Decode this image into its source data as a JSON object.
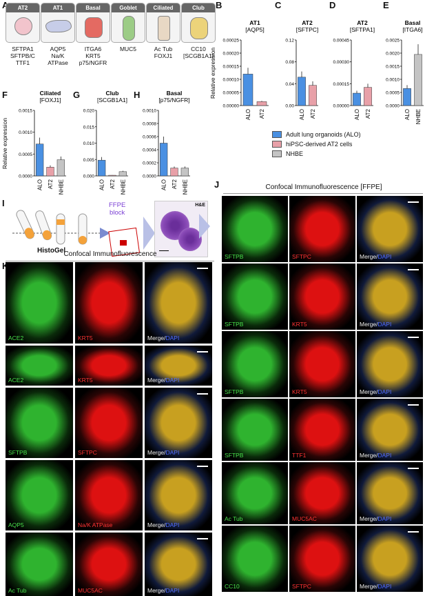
{
  "panels": {
    "A": "A",
    "B": "B",
    "C": "C",
    "D": "D",
    "E": "E",
    "F": "F",
    "G": "G",
    "H": "H",
    "I": "I",
    "J": "J",
    "K": "K"
  },
  "cell_types": [
    {
      "name": "AT2",
      "markers": [
        "SFTPA1",
        "SFTPB/C",
        "TTF1"
      ],
      "color": "#f2c4cc"
    },
    {
      "name": "AT1",
      "markers": [
        "AQP5",
        "Na/K",
        "ATPase"
      ],
      "color": "#c7cde8"
    },
    {
      "name": "Basal",
      "markers": [
        "ITGA6",
        "KRT5",
        "p75/NGFR"
      ],
      "color": "#e46a62"
    },
    {
      "name": "Goblet",
      "markers": [
        "MUC5"
      ],
      "color": "#9ccc86"
    },
    {
      "name": "Ciliated",
      "markers": [
        "Ac Tub",
        "FOXJ1"
      ],
      "color": "#e8d8c4"
    },
    {
      "name": "Club",
      "markers": [
        "CC10",
        "[SCGB1A1]"
      ],
      "color": "#ecd37a"
    }
  ],
  "ylabel": "Relative expression",
  "chart_data": [
    {
      "type": "bar",
      "panel": "B",
      "title": "AT1",
      "subtitle": "[AQP5]",
      "categories": [
        "ALO",
        "AT2"
      ],
      "values": [
        0.00012,
        1.5e-05
      ],
      "ylim": [
        0,
        0.00025
      ],
      "ticks": [
        "0.00000",
        "0.00005",
        "0.00010",
        "0.00015",
        "0.00020",
        "0.00025"
      ]
    },
    {
      "type": "bar",
      "panel": "C",
      "title": "AT2",
      "subtitle": "[SFTPC]",
      "categories": [
        "ALO",
        "AT2"
      ],
      "values": [
        0.052,
        0.037
      ],
      "ylim": [
        0,
        0.12
      ],
      "ticks": [
        "0.00",
        "0.04",
        "0.08",
        "0.12"
      ]
    },
    {
      "type": "bar",
      "panel": "D",
      "title": "AT2",
      "subtitle": "[SFTPA1]",
      "categories": [
        "ALO",
        "AT2"
      ],
      "values": [
        8.5e-05,
        0.000125
      ],
      "ylim": [
        0,
        0.00045
      ],
      "ticks": [
        "0.00000",
        "0.00015",
        "0.00030",
        "0.00045"
      ]
    },
    {
      "type": "bar",
      "panel": "E",
      "title": "Basal",
      "subtitle": "[ITGA6]",
      "categories": [
        "ALO",
        "NHBE"
      ],
      "values": [
        0.00065,
        0.00195
      ],
      "ylim": [
        0,
        0.0025
      ],
      "ticks": [
        "0.0000",
        "0.0005",
        "0.0010",
        "0.0015",
        "0.0020",
        "0.0025"
      ]
    },
    {
      "type": "bar",
      "panel": "F",
      "title": "Ciliated",
      "subtitle": "[FOXJ1]",
      "categories": [
        "ALO",
        "AT2",
        "NHBE"
      ],
      "values": [
        0.00073,
        0.0002,
        0.00037
      ],
      "ylim": [
        0,
        0.0015
      ],
      "ticks": [
        "0.0000",
        "0.0005",
        "0.0010",
        "0.0015"
      ]
    },
    {
      "type": "bar",
      "panel": "G",
      "title": "Club",
      "subtitle": "[SCGB1A1]",
      "categories": [
        "ALO",
        "AT2",
        "NHBE"
      ],
      "values": [
        0.0048,
        0.0002,
        0.0013
      ],
      "ylim": [
        0,
        0.02
      ],
      "ticks": [
        "0.000",
        "0.005",
        "0.010",
        "0.015",
        "0.020"
      ]
    },
    {
      "type": "bar",
      "panel": "H",
      "title": "Basal",
      "subtitle": "[p75/NGFR]",
      "categories": [
        "ALO",
        "AT2",
        "NHBE"
      ],
      "values": [
        0.0005,
        0.00012,
        0.00012
      ],
      "ylim": [
        0,
        0.001
      ],
      "ticks": [
        "0.0000",
        "0.0002",
        "0.0004",
        "0.0006",
        "0.0008",
        "0.0010"
      ]
    }
  ],
  "legend": [
    {
      "label": "Adult lung organoids (ALO)",
      "color": "#4a90e2"
    },
    {
      "label": "hiPSC-derived AT2 cells",
      "color": "#e8a0a8"
    },
    {
      "label": "NHBE",
      "color": "#c4c4c4"
    }
  ],
  "colors": {
    "ALO": "#4a90e2",
    "AT2": "#e8a0a8",
    "NHBE": "#c4c4c4"
  },
  "panel_I": {
    "gel": "HistoGel",
    "block": "FFPE\nblock",
    "stain": "H&E"
  },
  "panel_J": {
    "title": "Confocal Immunofluorescence [FFPE]",
    "rows": [
      {
        "g": "SFTPB",
        "r": "SFTPC"
      },
      {
        "g": "SFTPB",
        "r": "KRT5"
      },
      {
        "g": "SFTPB",
        "r": "KRT5"
      },
      {
        "g": "SFTPB",
        "r": "TTF1"
      },
      {
        "g": "Ac Tub",
        "r": "MUC5AC"
      },
      {
        "g": "CC10",
        "r": "SFTPC"
      }
    ],
    "merge": "Merge/",
    "dapi": "DAPI"
  },
  "panel_K": {
    "title": "Confocal Immunofluorescence",
    "rows": [
      {
        "g": "ACE2",
        "r": "KRT5"
      },
      {
        "g": "ACE2",
        "r": "KRT5"
      },
      {
        "g": "SFTPB",
        "r": "SFTPC"
      },
      {
        "g": "AQP5",
        "r": "Na/K ATPase"
      },
      {
        "g": "Ac Tub",
        "r": "MUC5AC"
      }
    ],
    "merge": "Merge/",
    "dapi": "DAPI"
  }
}
